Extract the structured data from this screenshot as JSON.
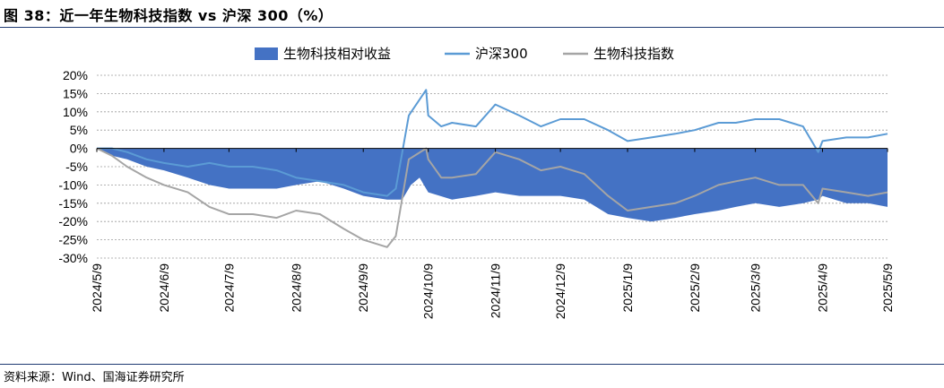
{
  "figure": {
    "title": "图 38：近一年生物科技指数 vs 沪深 300（%）",
    "source": "资料来源：Wind、国海证券研究所"
  },
  "colors": {
    "relative_fill": "#4472c4",
    "hs300_line": "#5b9bd5",
    "bio_line": "#a5a5a5",
    "rule": "#1f3b73"
  },
  "chart_data": {
    "type": "line",
    "x_type": "date",
    "ylim": [
      -30,
      20
    ],
    "y_ticks": [
      20,
      15,
      10,
      5,
      0,
      -5,
      -10,
      -15,
      -20,
      -25,
      -30
    ],
    "y_tick_labels": [
      "20%",
      "15%",
      "10%",
      "5%",
      "0%",
      "-5%",
      "-10%",
      "-15%",
      "-20%",
      "-25%",
      "-30%"
    ],
    "x_ticks": [
      "2024-05-09",
      "2024-06-09",
      "2024-07-09",
      "2024-08-09",
      "2024-09-09",
      "2024-10-09",
      "2024-11-09",
      "2024-12-09",
      "2025-01-09",
      "2025-02-09",
      "2025-03-09",
      "2025-04-09",
      "2025-05-09"
    ],
    "x_tick_labels": [
      "2024/5/9",
      "2024/6/9",
      "2024/7/9",
      "2024/8/9",
      "2024/9/9",
      "2024/10/9",
      "2024/11/9",
      "2024/12/9",
      "2025/1/9",
      "2025/2/9",
      "2025/3/9",
      "2025/4/9",
      "2025/5/9"
    ],
    "legend_position": "top",
    "grid": "horizontal dashed",
    "series": [
      {
        "name": "生物科技相对收益",
        "style": "area",
        "points": [
          [
            "2024-05-09",
            0
          ],
          [
            "2024-05-16",
            -2
          ],
          [
            "2024-05-23",
            -3
          ],
          [
            "2024-06-01",
            -5
          ],
          [
            "2024-06-09",
            -6
          ],
          [
            "2024-06-20",
            -8
          ],
          [
            "2024-06-30",
            -10
          ],
          [
            "2024-07-09",
            -11
          ],
          [
            "2024-07-20",
            -11
          ],
          [
            "2024-07-31",
            -11
          ],
          [
            "2024-08-09",
            -10
          ],
          [
            "2024-08-20",
            -9
          ],
          [
            "2024-08-31",
            -11
          ],
          [
            "2024-09-09",
            -13
          ],
          [
            "2024-09-20",
            -14
          ],
          [
            "2024-09-27",
            -14
          ],
          [
            "2024-10-01",
            -10
          ],
          [
            "2024-10-05",
            -8
          ],
          [
            "2024-10-09",
            -12
          ],
          [
            "2024-10-20",
            -14
          ],
          [
            "2024-10-31",
            -13
          ],
          [
            "2024-11-09",
            -12
          ],
          [
            "2024-11-20",
            -13
          ],
          [
            "2024-11-30",
            -13
          ],
          [
            "2024-12-09",
            -13
          ],
          [
            "2024-12-20",
            -14
          ],
          [
            "2024-12-31",
            -18
          ],
          [
            "2025-01-09",
            -19
          ],
          [
            "2025-01-20",
            -20
          ],
          [
            "2025-01-31",
            -19
          ],
          [
            "2025-02-09",
            -18
          ],
          [
            "2025-02-20",
            -17
          ],
          [
            "2025-02-28",
            -16
          ],
          [
            "2025-03-09",
            -15
          ],
          [
            "2025-03-20",
            -16
          ],
          [
            "2025-03-31",
            -15
          ],
          [
            "2025-04-07",
            -14
          ],
          [
            "2025-04-09",
            -13
          ],
          [
            "2025-04-20",
            -15
          ],
          [
            "2025-04-30",
            -15
          ],
          [
            "2025-05-09",
            -16
          ]
        ]
      },
      {
        "name": "沪深300",
        "style": "line",
        "points": [
          [
            "2024-05-09",
            0
          ],
          [
            "2024-05-16",
            0
          ],
          [
            "2024-05-23",
            -1
          ],
          [
            "2024-06-01",
            -3
          ],
          [
            "2024-06-09",
            -4
          ],
          [
            "2024-06-20",
            -5
          ],
          [
            "2024-06-30",
            -4
          ],
          [
            "2024-07-09",
            -5
          ],
          [
            "2024-07-20",
            -5
          ],
          [
            "2024-07-31",
            -6
          ],
          [
            "2024-08-09",
            -8
          ],
          [
            "2024-08-20",
            -9
          ],
          [
            "2024-08-31",
            -10
          ],
          [
            "2024-09-09",
            -12
          ],
          [
            "2024-09-20",
            -13
          ],
          [
            "2024-09-24",
            -11
          ],
          [
            "2024-09-30",
            9
          ],
          [
            "2024-10-08",
            16
          ],
          [
            "2024-10-09",
            9
          ],
          [
            "2024-10-15",
            6
          ],
          [
            "2024-10-20",
            7
          ],
          [
            "2024-10-31",
            6
          ],
          [
            "2024-11-09",
            12
          ],
          [
            "2024-11-20",
            9
          ],
          [
            "2024-11-30",
            6
          ],
          [
            "2024-12-09",
            8
          ],
          [
            "2024-12-20",
            8
          ],
          [
            "2024-12-31",
            5
          ],
          [
            "2025-01-09",
            2
          ],
          [
            "2025-01-20",
            3
          ],
          [
            "2025-01-31",
            4
          ],
          [
            "2025-02-09",
            5
          ],
          [
            "2025-02-20",
            7
          ],
          [
            "2025-02-28",
            7
          ],
          [
            "2025-03-09",
            8
          ],
          [
            "2025-03-20",
            8
          ],
          [
            "2025-03-31",
            6
          ],
          [
            "2025-04-07",
            -1
          ],
          [
            "2025-04-09",
            2
          ],
          [
            "2025-04-20",
            3
          ],
          [
            "2025-04-30",
            3
          ],
          [
            "2025-05-09",
            4
          ]
        ]
      },
      {
        "name": "生物科技指数",
        "style": "line",
        "points": [
          [
            "2024-05-09",
            0
          ],
          [
            "2024-05-16",
            -2
          ],
          [
            "2024-05-23",
            -5
          ],
          [
            "2024-06-01",
            -8
          ],
          [
            "2024-06-09",
            -10
          ],
          [
            "2024-06-20",
            -12
          ],
          [
            "2024-06-30",
            -16
          ],
          [
            "2024-07-09",
            -18
          ],
          [
            "2024-07-20",
            -18
          ],
          [
            "2024-07-31",
            -19
          ],
          [
            "2024-08-09",
            -17
          ],
          [
            "2024-08-20",
            -18
          ],
          [
            "2024-08-31",
            -22
          ],
          [
            "2024-09-09",
            -25
          ],
          [
            "2024-09-20",
            -27
          ],
          [
            "2024-09-24",
            -24
          ],
          [
            "2024-09-30",
            -3
          ],
          [
            "2024-10-08",
            0
          ],
          [
            "2024-10-09",
            -3
          ],
          [
            "2024-10-15",
            -8
          ],
          [
            "2024-10-20",
            -8
          ],
          [
            "2024-10-31",
            -7
          ],
          [
            "2024-11-09",
            -1
          ],
          [
            "2024-11-20",
            -3
          ],
          [
            "2024-11-30",
            -6
          ],
          [
            "2024-12-09",
            -5
          ],
          [
            "2024-12-20",
            -7
          ],
          [
            "2024-12-31",
            -13
          ],
          [
            "2025-01-09",
            -17
          ],
          [
            "2025-01-20",
            -16
          ],
          [
            "2025-01-31",
            -15
          ],
          [
            "2025-02-09",
            -13
          ],
          [
            "2025-02-20",
            -10
          ],
          [
            "2025-02-28",
            -9
          ],
          [
            "2025-03-09",
            -8
          ],
          [
            "2025-03-20",
            -10
          ],
          [
            "2025-03-31",
            -10
          ],
          [
            "2025-04-07",
            -15
          ],
          [
            "2025-04-09",
            -11
          ],
          [
            "2025-04-20",
            -12
          ],
          [
            "2025-04-30",
            -13
          ],
          [
            "2025-05-09",
            -12
          ]
        ]
      }
    ]
  }
}
